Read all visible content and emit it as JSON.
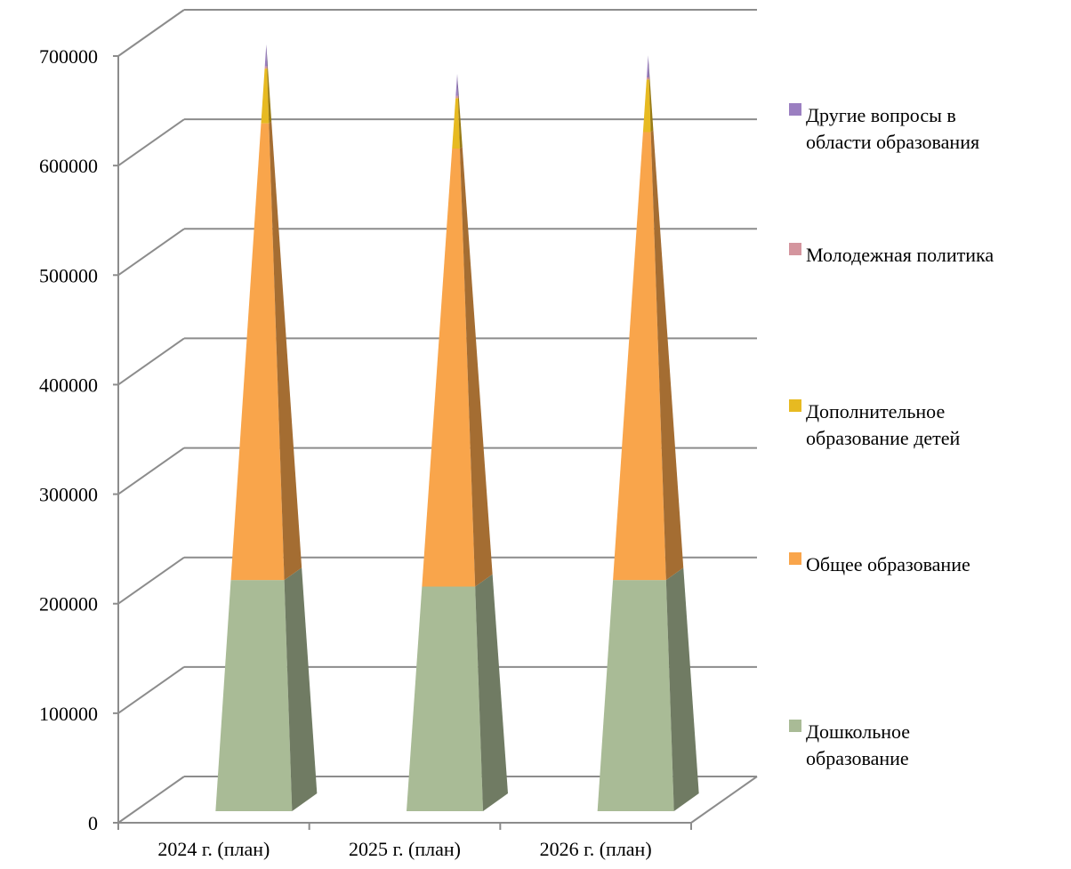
{
  "chart_data": {
    "type": "bar",
    "style": "3d-stacked-pyramid",
    "title": "",
    "xlabel": "",
    "ylabel": "",
    "ylim": [
      0,
      700000
    ],
    "y_ticks": [
      "0",
      "100000",
      "200000",
      "300000",
      "400000",
      "500000",
      "600000",
      "700000"
    ],
    "grid": true,
    "legend_position": "right",
    "categories": [
      "2024 г. (план)",
      "2025 г. (план)",
      "2026 г. (план)"
    ],
    "series": [
      {
        "name": "Дошкольное образование",
        "values": [
          211000,
          205000,
          211000
        ],
        "color": "#a9bb96"
      },
      {
        "name": "Общее образование",
        "values": [
          417000,
          400000,
          409000
        ],
        "color": "#f9a54b"
      },
      {
        "name": "Дополнительное образование детей",
        "values": [
          50000,
          46000,
          48000
        ],
        "color": "#e7ba21"
      },
      {
        "name": "Молодежная политика",
        "values": [
          2000,
          2000,
          2000
        ],
        "color": "#d4959e"
      },
      {
        "name": "Другие вопросы в области образования",
        "values": [
          20000,
          20000,
          20000
        ],
        "color": "#9b7fc1"
      }
    ],
    "legend": [
      "Другие вопросы в области образования",
      "Молодежная политика",
      "Дополнительное образование детей",
      "Общее образование",
      "Дошкольное образование"
    ]
  }
}
